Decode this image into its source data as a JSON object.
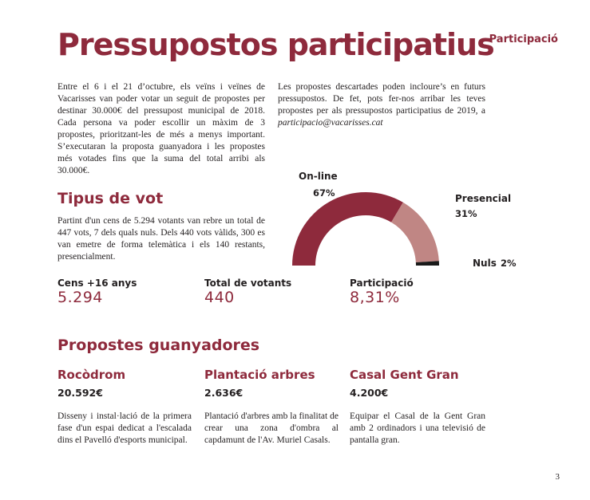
{
  "header": {
    "title": "Pressupostos participatius",
    "section": "Participació"
  },
  "intro": {
    "col1": "Entre el 6 i el 21 d’octubre, els veïns i veïnes de Vacarisses van poder votar un seguit de propostes per destinar 30.000€ del pressupost municipal de 2018. Cada persona va poder escollir un màxim de 3 propostes, prioritzant-les de més a menys important. S’executaran la proposta guanyadora i les propostes més votades fins que la suma del total arribi als 30.000€.",
    "col2_text": "Les propostes descartades poden incloure’s en futurs pressupostos. De fet, pots fer-nos arribar les teves propostes per als pressupostos participatius de 2019, a ",
    "col2_email": "participacio@vacarisses.cat"
  },
  "vote_type": {
    "heading": "Tipus de vot",
    "text": "Partint d'un cens de 5.294 votants van rebre un total de 447 vots, 7 dels quals nuls. Dels 440 vots vàlids, 300 es van emetre de forma telemàtica i els 140 restants, presencialment."
  },
  "stats": [
    {
      "label": "Cens +16 anys",
      "value": "5.294"
    },
    {
      "label": "Total de votants",
      "value": "440"
    },
    {
      "label": "Participació",
      "value": "8,31%"
    }
  ],
  "chart_data": {
    "type": "pie",
    "style": "half-donut",
    "categories": [
      "On-line",
      "Presencial",
      "Nuls"
    ],
    "values": [
      67,
      31,
      2
    ],
    "value_labels": [
      "67%",
      "31%",
      "2%"
    ],
    "colors": [
      "#8e2a3c",
      "#c08684",
      "#1a1a1a"
    ]
  },
  "winners": {
    "heading": "Propostes guanyadores",
    "items": [
      {
        "name": "Rocòdrom",
        "amount": "20.592€",
        "description": "Disseny i instal·lació de la primera fase d'un espai dedicat a l'escalada dins el Pavelló d'esports municipal."
      },
      {
        "name": "Plantació arbres",
        "amount": "2.636€",
        "description": "Plantació d'arbres amb la finalitat de crear una zona d'ombra al capdamunt de l'Av. Muriel Casals."
      },
      {
        "name": "Casal Gent Gran",
        "amount": "4.200€",
        "description": "Equipar el Casal de la Gent Gran amb 2 ordinadors i una televisió de pantalla gran."
      }
    ]
  },
  "footer": {
    "page_number": "3"
  }
}
